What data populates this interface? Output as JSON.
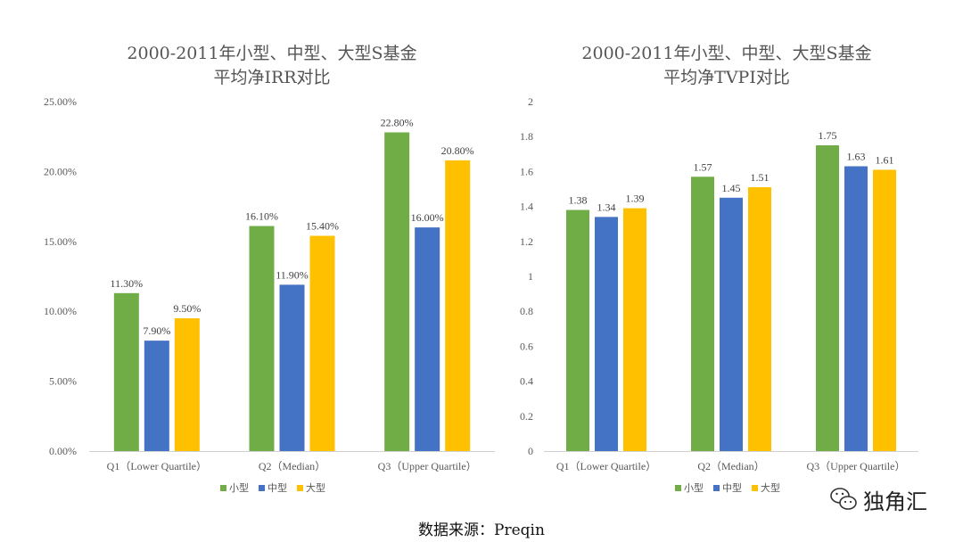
{
  "colors": {
    "small": "#70AD47",
    "medium": "#4472C4",
    "large": "#FFC000"
  },
  "chart_data": [
    {
      "type": "bar",
      "title_lines": [
        "2000-2011年小型、中型、大型S基金",
        "平均净IRR对比"
      ],
      "categories": [
        "Q1（Lower Quartile）",
        "Q2（Median）",
        "Q3（Upper Quartile）"
      ],
      "series": [
        {
          "name": "小型",
          "values": [
            11.3,
            16.1,
            22.8
          ],
          "labels": [
            "11.30%",
            "16.10%",
            "22.80%"
          ]
        },
        {
          "name": "中型",
          "values": [
            7.9,
            11.9,
            16.0
          ],
          "labels": [
            "7.90%",
            "11.90%",
            "16.00%"
          ]
        },
        {
          "name": "大型",
          "values": [
            9.5,
            15.4,
            20.8
          ],
          "labels": [
            "9.50%",
            "15.40%",
            "20.80%"
          ]
        }
      ],
      "ylim": [
        0,
        25
      ],
      "yticks": [
        "0.00%",
        "5.00%",
        "10.00%",
        "15.00%",
        "20.00%",
        "25.00%"
      ],
      "grid": false,
      "legend": "bottom"
    },
    {
      "type": "bar",
      "title_lines": [
        "2000-2011年小型、中型、大型S基金",
        "平均净TVPI对比"
      ],
      "categories": [
        "Q1（Lower Quartile）",
        "Q2（Median）",
        "Q3（Upper Quartile）"
      ],
      "series": [
        {
          "name": "小型",
          "values": [
            1.38,
            1.57,
            1.75
          ],
          "labels": [
            "1.38",
            "1.57",
            "1.75"
          ]
        },
        {
          "name": "中型",
          "values": [
            1.34,
            1.45,
            1.63
          ],
          "labels": [
            "1.34",
            "1.45",
            "1.63"
          ]
        },
        {
          "name": "大型",
          "values": [
            1.39,
            1.51,
            1.61
          ],
          "labels": [
            "1.39",
            "1.51",
            "1.61"
          ]
        }
      ],
      "ylim": [
        0,
        2
      ],
      "yticks": [
        "0",
        "0.2",
        "0.4",
        "0.6",
        "0.8",
        "1",
        "1.2",
        "1.4",
        "1.6",
        "1.8",
        "2"
      ],
      "grid": false,
      "legend": "bottom"
    }
  ],
  "source_text": "数据来源：Preqin",
  "watermark": {
    "text": "独角汇",
    "icon": "wechat-icon"
  }
}
